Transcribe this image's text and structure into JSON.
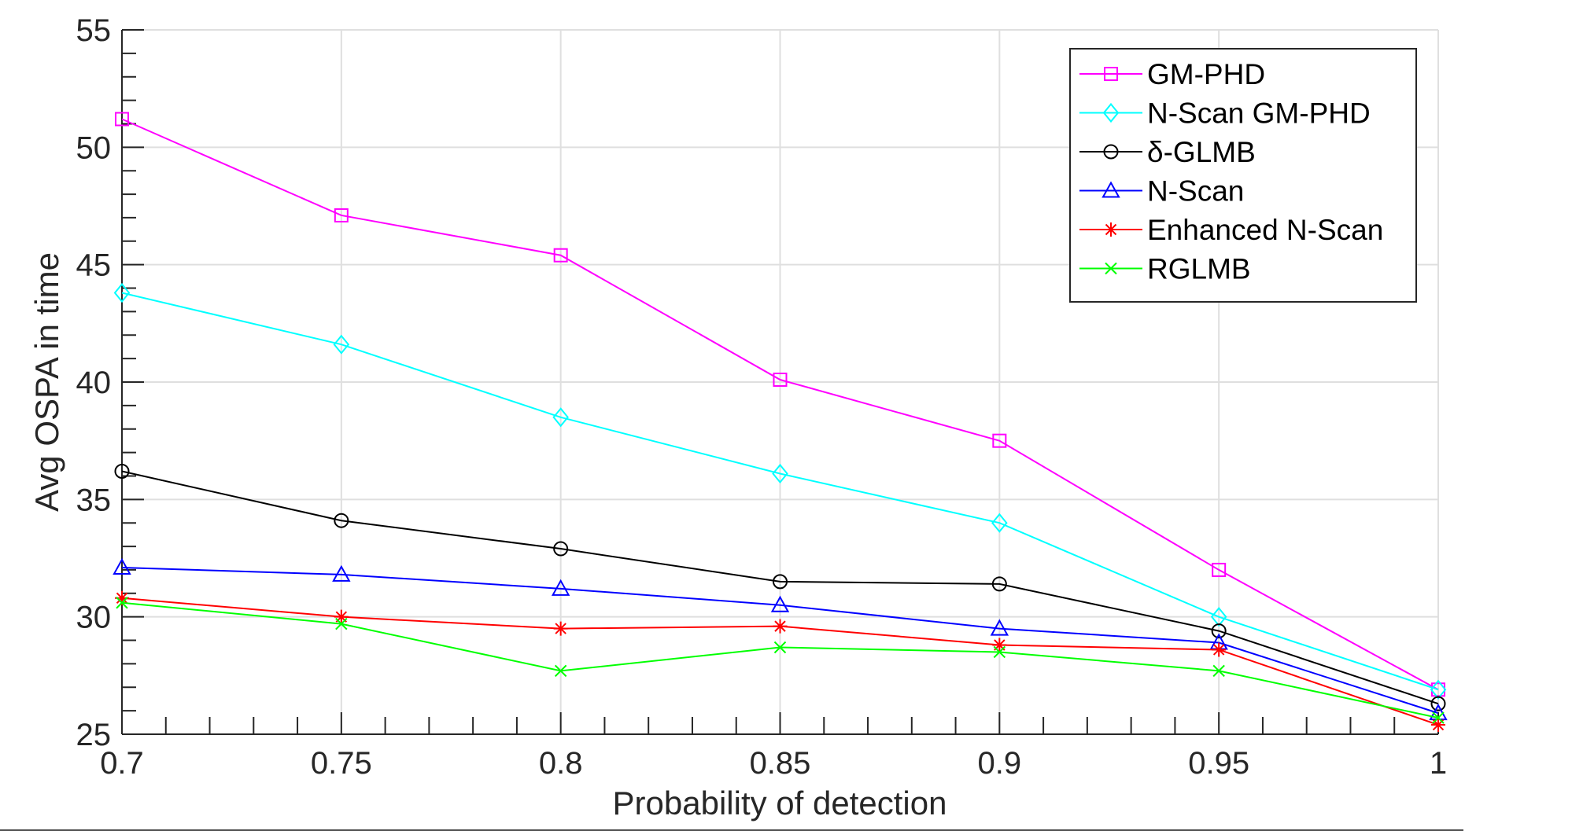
{
  "chart_data": {
    "type": "line",
    "title": "",
    "xlabel": "Probability of detection",
    "ylabel": "Avg OSPA in time",
    "xlim": [
      0.7,
      1
    ],
    "ylim": [
      25,
      55
    ],
    "xticks": [
      0.7,
      0.75,
      0.8,
      0.85,
      0.9,
      0.95,
      1
    ],
    "xtick_labels": [
      "0.7",
      "0.75",
      "0.8",
      "0.85",
      "0.9",
      "0.95",
      "1"
    ],
    "yticks": [
      25,
      30,
      35,
      40,
      45,
      50,
      55
    ],
    "ytick_labels": [
      "25",
      "30",
      "35",
      "40",
      "45",
      "50",
      "55"
    ],
    "grid": true,
    "legend_position": "top-right",
    "x": [
      0.7,
      0.75,
      0.8,
      0.85,
      0.9,
      0.95,
      1
    ],
    "series": [
      {
        "name": "GM-PHD",
        "color": "#ff00ff",
        "marker": "square",
        "values": [
          51.2,
          47.1,
          45.4,
          40.1,
          37.5,
          32.0,
          26.9
        ]
      },
      {
        "name": "N-Scan GM-PHD",
        "color": "#00ffff",
        "marker": "diamond",
        "values": [
          43.8,
          41.6,
          38.5,
          36.1,
          34.0,
          30.0,
          26.9
        ]
      },
      {
        "name": "δ-GLMB",
        "color": "#000000",
        "marker": "circle",
        "values": [
          36.2,
          34.1,
          32.9,
          31.5,
          31.4,
          29.4,
          26.3
        ]
      },
      {
        "name": "N-Scan",
        "color": "#0000ff",
        "marker": "triangle",
        "values": [
          32.1,
          31.8,
          31.2,
          30.5,
          29.5,
          28.9,
          25.9
        ]
      },
      {
        "name": "Enhanced N-Scan",
        "color": "#ff0000",
        "marker": "asterisk",
        "values": [
          30.8,
          30.0,
          29.5,
          29.6,
          28.8,
          28.6,
          25.4
        ]
      },
      {
        "name": "RGLMB",
        "color": "#00ff00",
        "marker": "x",
        "values": [
          30.6,
          29.7,
          27.7,
          28.7,
          28.5,
          27.7,
          25.7
        ]
      }
    ]
  }
}
